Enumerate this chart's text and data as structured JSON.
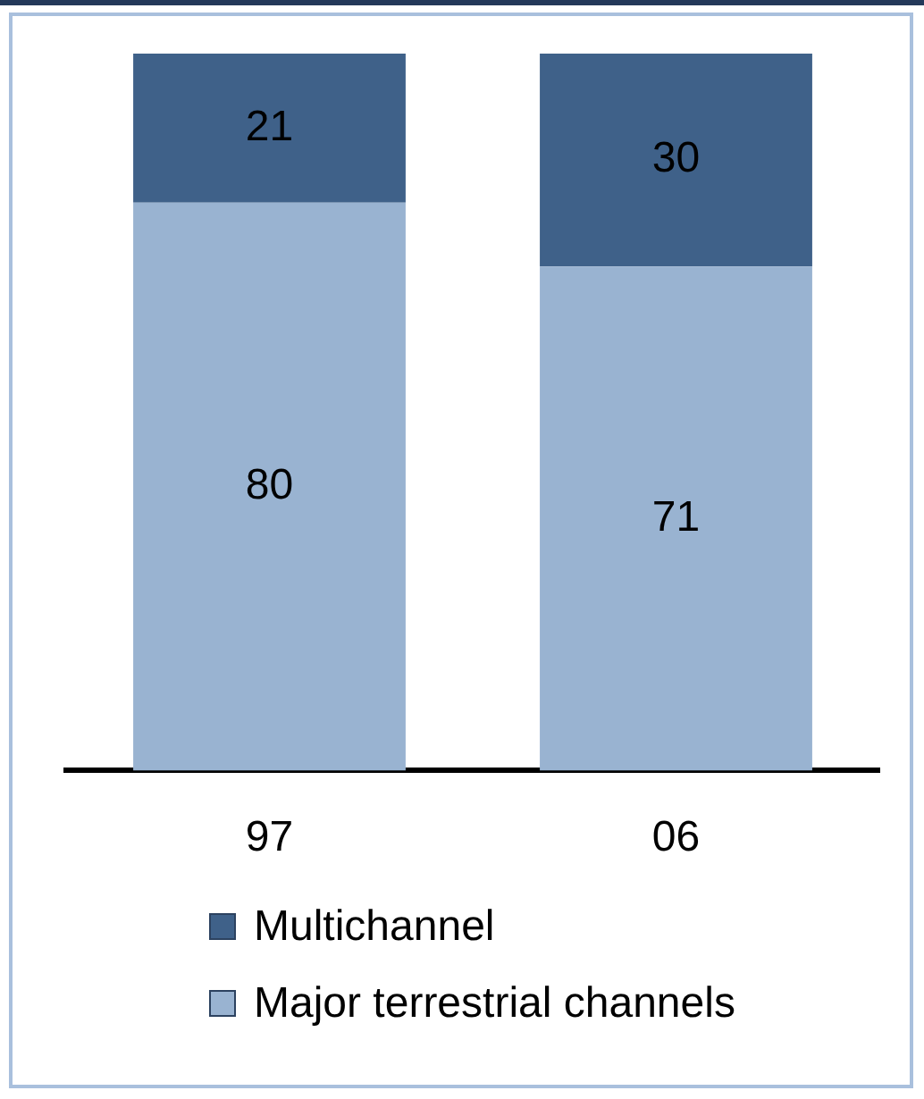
{
  "chart_data": {
    "type": "bar",
    "categories": [
      "97",
      "06"
    ],
    "stacked": true,
    "series": [
      {
        "name": "Major terrestrial channels",
        "color": "#99b3d1",
        "values": [
          80,
          71
        ]
      },
      {
        "name": "Multichannel",
        "color": "#3f6189",
        "values": [
          21,
          30
        ]
      }
    ],
    "data_labels": true,
    "legend": "bottom"
  }
}
